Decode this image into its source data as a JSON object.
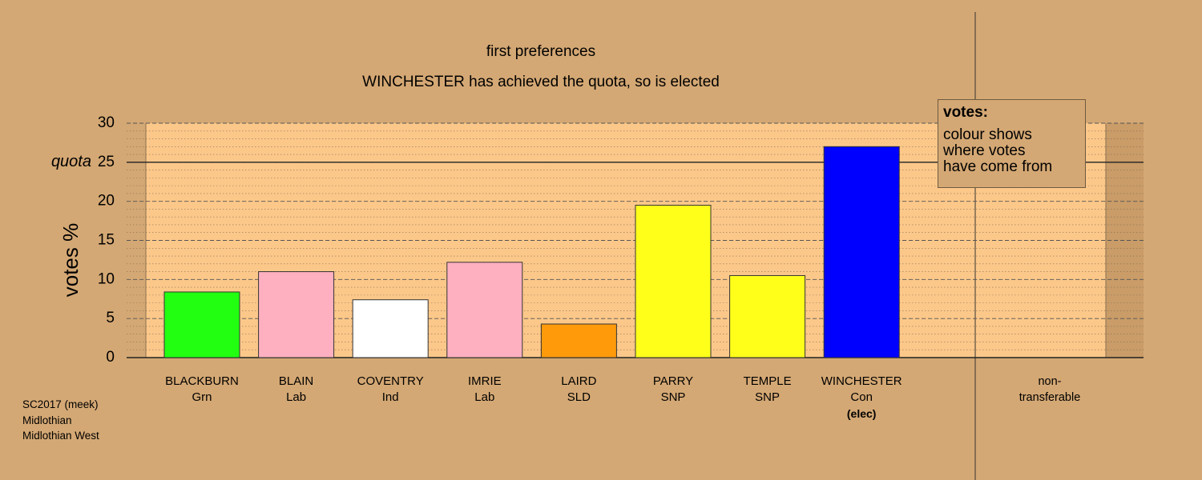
{
  "chart_data": {
    "type": "bar",
    "title": "first preferences",
    "subtitle": "WINCHESTER has achieved the quota, so is elected",
    "y_label": "votes %",
    "categories": [
      "BLACKBURN",
      "BLAIN",
      "COVENTRY",
      "IMRIE",
      "LAIRD",
      "PARRY",
      "TEMPLE",
      "WINCHESTER",
      "non-transferable"
    ],
    "parties": [
      "Grn",
      "Lab",
      "Ind",
      "Lab",
      "SLD",
      "SNP",
      "SNP",
      "Con",
      null
    ],
    "values": [
      8.4,
      11.0,
      7.4,
      12.2,
      4.3,
      19.5,
      10.5,
      27.0,
      0
    ],
    "colors": [
      "#22ff11",
      "#ffb0c0",
      "#ffffff",
      "#ffb0c0",
      "#ff9a0a",
      "#ffff1a",
      "#ffff1a",
      "#0000ff",
      "#888888"
    ],
    "elected": {
      "category": 7,
      "label": "(elec)"
    },
    "quota": 25,
    "quota_label": "quota",
    "ylim": [
      0,
      30
    ],
    "yticks": [
      0,
      5,
      10,
      15,
      20,
      25,
      30
    ],
    "grid": true,
    "legend": {
      "title": "votes:",
      "lines": [
        "colour shows",
        "where votes",
        "have come from"
      ]
    },
    "footer": [
      "SC2017 (meek)",
      "Midlothian",
      "Midlothian West"
    ]
  }
}
